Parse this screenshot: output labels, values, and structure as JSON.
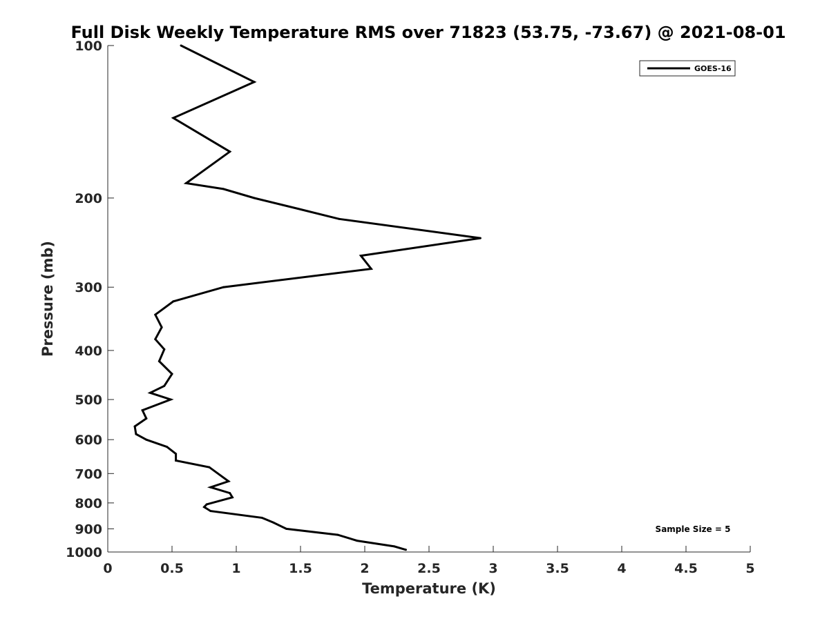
{
  "chart_data": {
    "type": "line",
    "title": "Full Disk Weekly Temperature RMS over 71823 (53.75, -73.67) @ 2021-08-01",
    "xlabel": "Temperature (K)",
    "ylabel": "Pressure (mb)",
    "xlim": [
      0,
      5
    ],
    "ylim": [
      100,
      1000
    ],
    "y_scale": "log",
    "y_reversed": true,
    "x_ticks": [
      0,
      0.5,
      1,
      1.5,
      2,
      2.5,
      3,
      3.5,
      4,
      4.5,
      5
    ],
    "x_tick_labels": [
      "0",
      "0.5",
      "1",
      "1.5",
      "2",
      "2.5",
      "3",
      "3.5",
      "4",
      "4.5",
      "5"
    ],
    "y_ticks": [
      100,
      200,
      300,
      400,
      500,
      600,
      700,
      800,
      900,
      1000
    ],
    "y_tick_labels": [
      "100",
      "200",
      "300",
      "400",
      "500",
      "600",
      "700",
      "800",
      "900",
      "1000"
    ],
    "grid": false,
    "legend_position": "top-right",
    "annotation": "Sample Size = 5",
    "series": [
      {
        "name": "GOES-16",
        "color": "#000000",
        "points": [
          [
            0.57,
            100
          ],
          [
            1.14,
            118
          ],
          [
            0.51,
            139
          ],
          [
            0.95,
            162
          ],
          [
            0.61,
            187
          ],
          [
            0.9,
            192
          ],
          [
            1.14,
            200
          ],
          [
            1.48,
            210
          ],
          [
            1.8,
            220
          ],
          [
            2.9,
            240
          ],
          [
            1.97,
            260
          ],
          [
            2.05,
            276
          ],
          [
            0.9,
            300
          ],
          [
            0.51,
            320
          ],
          [
            0.37,
            340
          ],
          [
            0.42,
            360
          ],
          [
            0.37,
            380
          ],
          [
            0.44,
            398
          ],
          [
            0.4,
            420
          ],
          [
            0.5,
            445
          ],
          [
            0.44,
            470
          ],
          [
            0.33,
            485
          ],
          [
            0.49,
            500
          ],
          [
            0.27,
            525
          ],
          [
            0.3,
            545
          ],
          [
            0.21,
            565
          ],
          [
            0.22,
            585
          ],
          [
            0.3,
            600
          ],
          [
            0.46,
            620
          ],
          [
            0.53,
            640
          ],
          [
            0.53,
            660
          ],
          [
            0.79,
            680
          ],
          [
            0.94,
            725
          ],
          [
            0.8,
            745
          ],
          [
            0.95,
            765
          ],
          [
            0.97,
            780
          ],
          [
            0.77,
            805
          ],
          [
            0.75,
            815
          ],
          [
            0.8,
            830
          ],
          [
            1.2,
            856
          ],
          [
            1.29,
            875
          ],
          [
            1.39,
            900
          ],
          [
            1.79,
            925
          ],
          [
            1.94,
            950
          ],
          [
            2.23,
            975
          ],
          [
            2.32,
            990
          ]
        ]
      }
    ]
  }
}
